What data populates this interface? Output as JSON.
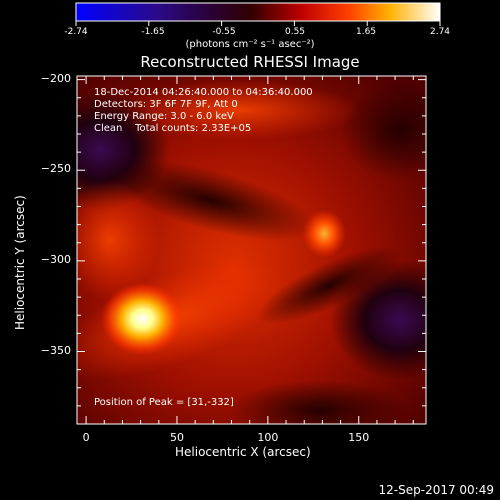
{
  "colorbar": {
    "ticks": [
      "-2.74",
      "-1.65",
      "-0.55",
      "0.55",
      "1.65",
      "2.74"
    ],
    "units_label": "(photons cm⁻² s⁻¹ asec⁻²)"
  },
  "header": {
    "title": "Reconstructed RHESSI Image",
    "time_range": "18-Dec-2014 04:26:40.000 to 04:36:40.000",
    "detectors": "Detectors: 3F 6F 7F 9F, Att 0",
    "energy": "Energy Range: 3.0 - 6.0 keV",
    "clean": "Clean    Total counts: 2.33E+05",
    "peak": "Position of Peak = [31,-332]"
  },
  "footer": {
    "timestamp": "12-Sep-2017 00:49"
  },
  "chart_data": {
    "type": "heatmap",
    "title": "Reconstructed RHESSI Image",
    "xlabel": "Heliocentric X (arcsec)",
    "ylabel": "Heliocentric Y (arcsec)",
    "xlim": [
      -5,
      187
    ],
    "ylim": [
      -390,
      -198
    ],
    "x_ticks": [
      0,
      50,
      100,
      150
    ],
    "y_ticks": [
      -200,
      -250,
      -300,
      -350
    ],
    "color_range": [
      -2.74,
      2.74
    ],
    "colormap": "rainbow-blue-black-red-yellow-white",
    "sources": [
      {
        "x": 31,
        "y": -332,
        "value": 2.74
      },
      {
        "x": 131,
        "y": -285,
        "value": 1.5
      }
    ],
    "peak": [
      31,
      -332
    ]
  },
  "colors": {
    "background": "#000000",
    "text": "#ffffff"
  }
}
